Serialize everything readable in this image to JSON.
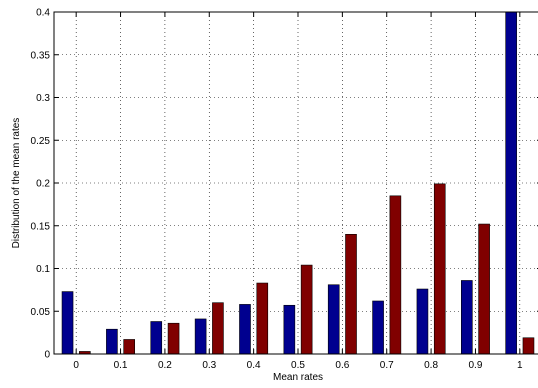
{
  "chart_data": {
    "type": "bar",
    "title": "",
    "xlabel": "Mean rates",
    "ylabel": "Distribution of the mean rates",
    "categories": [
      "0",
      "0.1",
      "0.2",
      "0.3",
      "0.4",
      "0.5",
      "0.6",
      "0.7",
      "0.8",
      "0.9",
      "1"
    ],
    "ylim": [
      0,
      0.4
    ],
    "yticks": [
      0,
      0.05,
      0.1,
      0.15,
      0.2,
      0.25,
      0.3,
      0.35,
      0.4
    ],
    "ytick_labels": [
      "0",
      "0.05",
      "0.1",
      "0.15",
      "0.2",
      "0.25",
      "0.3",
      "0.35",
      "0.4"
    ],
    "grid": true,
    "grid_style": "dotted",
    "legend": "none",
    "series": [
      {
        "color": "#00008f",
        "values": [
          0.073,
          0.029,
          0.038,
          0.041,
          0.058,
          0.057,
          0.081,
          0.062,
          0.076,
          0.086,
          0.4
        ]
      },
      {
        "color": "#800000",
        "values": [
          0.003,
          0.017,
          0.036,
          0.06,
          0.083,
          0.104,
          0.14,
          0.185,
          0.199,
          0.152,
          0.019
        ]
      }
    ]
  }
}
